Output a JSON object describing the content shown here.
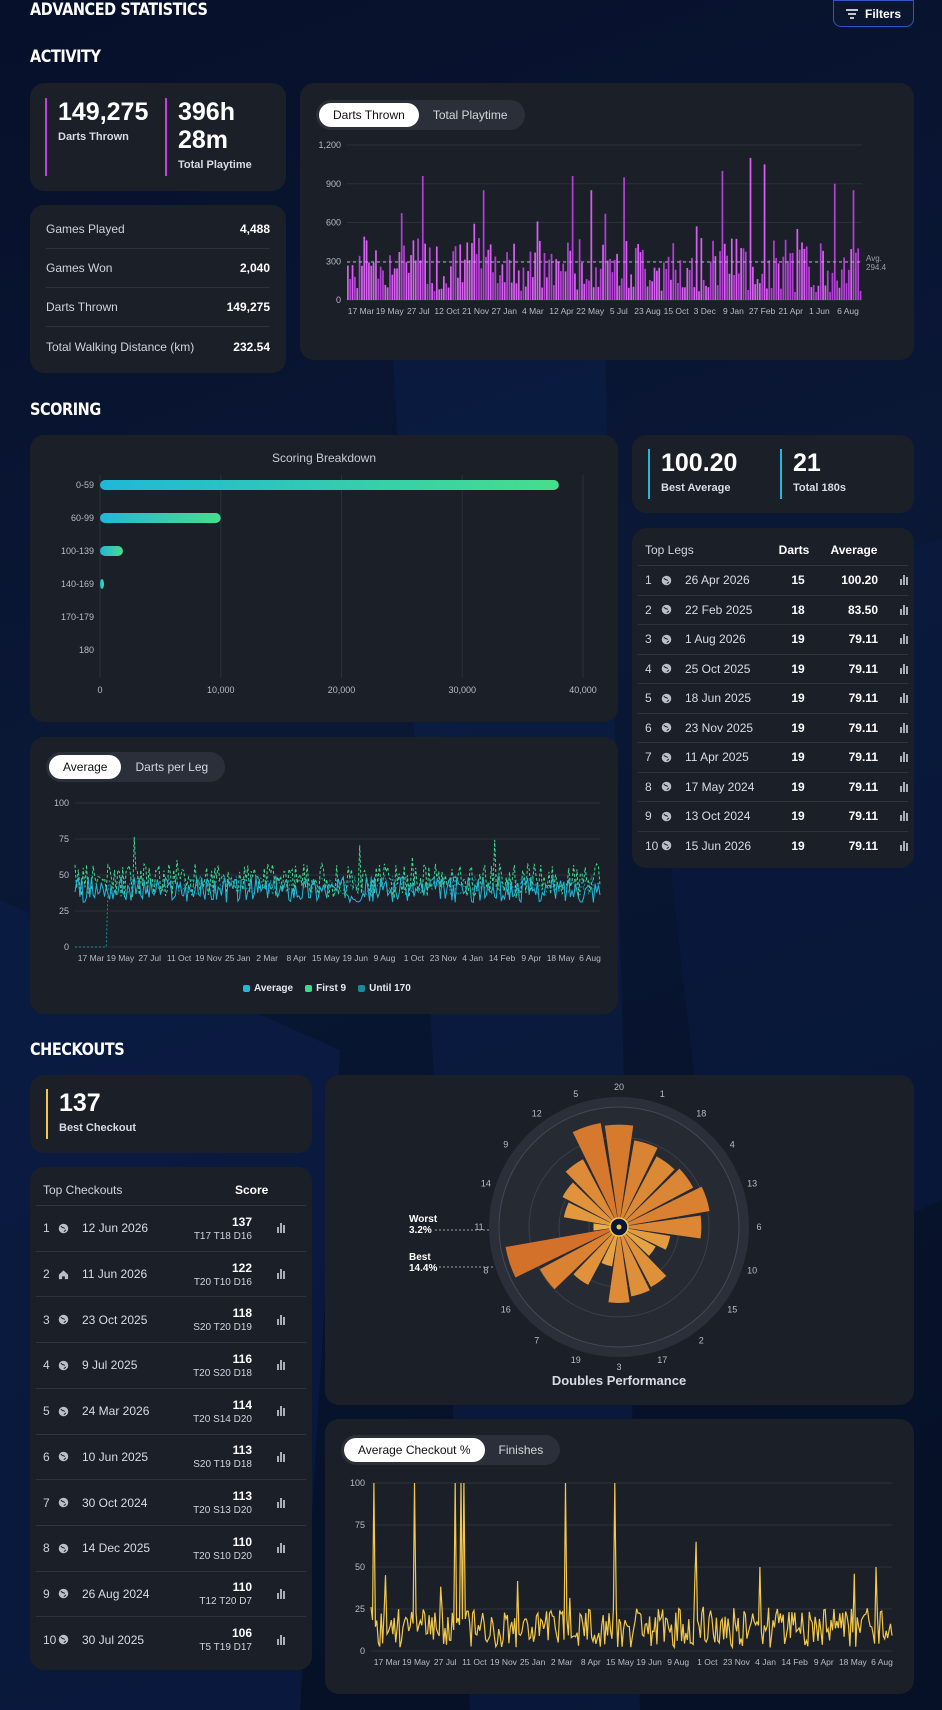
{
  "page": {
    "title": "ADVANCED STATISTICS",
    "filters_label": "Filters"
  },
  "activity": {
    "heading": "ACTIVITY",
    "darts_thrown_value": "149,275",
    "darts_thrown_label": "Darts Thrown",
    "playtime_hours": "396h",
    "playtime_minutes": "28m",
    "playtime_label": "Total Playtime",
    "stats": [
      {
        "label": "Games Played",
        "value": "4,488"
      },
      {
        "label": "Games Won",
        "value": "2,040"
      },
      {
        "label": "Darts Thrown",
        "value": "149,275"
      },
      {
        "label": "Total Walking Distance (km)",
        "value": "232.54"
      }
    ],
    "tabs": [
      "Darts Thrown",
      "Total Playtime"
    ],
    "avg_label": "Avg.",
    "avg_value": "294.4"
  },
  "scoring": {
    "heading": "SCORING",
    "best_average_value": "100.20",
    "best_average_label": "Best Average",
    "total_180s_value": "21",
    "total_180s_label": "Total 180s",
    "top_legs_header": {
      "title": "Top Legs",
      "darts": "Darts",
      "average": "Average"
    },
    "top_legs": [
      {
        "n": "1",
        "date": "26 Apr 2026",
        "darts": "15",
        "avg": "100.20"
      },
      {
        "n": "2",
        "date": "22 Feb 2025",
        "darts": "18",
        "avg": "83.50"
      },
      {
        "n": "3",
        "date": "1 Aug 2026",
        "darts": "19",
        "avg": "79.11"
      },
      {
        "n": "4",
        "date": "25 Oct 2025",
        "darts": "19",
        "avg": "79.11"
      },
      {
        "n": "5",
        "date": "18 Jun 2025",
        "darts": "19",
        "avg": "79.11"
      },
      {
        "n": "6",
        "date": "23 Nov 2025",
        "darts": "19",
        "avg": "79.11"
      },
      {
        "n": "7",
        "date": "11 Apr 2025",
        "darts": "19",
        "avg": "79.11"
      },
      {
        "n": "8",
        "date": "17 May 2024",
        "darts": "19",
        "avg": "79.11"
      },
      {
        "n": "9",
        "date": "13 Oct 2024",
        "darts": "19",
        "avg": "79.11"
      },
      {
        "n": "10",
        "date": "15 Jun 2026",
        "darts": "19",
        "avg": "79.11"
      }
    ],
    "avg_tabs": [
      "Average",
      "Darts per Leg"
    ],
    "legend": [
      "Average",
      "First 9",
      "Until 170"
    ]
  },
  "checkouts": {
    "heading": "CHECKOUTS",
    "best_checkout_value": "137",
    "best_checkout_label": "Best Checkout",
    "table_header": {
      "title": "Top Checkouts",
      "score": "Score"
    },
    "rows": [
      {
        "n": "1",
        "icon": "globe-icon",
        "date": "12 Jun 2026",
        "score": "137",
        "route": "T17 T18 D16"
      },
      {
        "n": "2",
        "icon": "home-icon",
        "date": "11 Jun 2026",
        "score": "122",
        "route": "T20 T10 D16"
      },
      {
        "n": "3",
        "icon": "globe-icon",
        "date": "23 Oct 2025",
        "score": "118",
        "route": "S20 T20 D19"
      },
      {
        "n": "4",
        "icon": "globe-icon",
        "date": "9 Jul 2025",
        "score": "116",
        "route": "T20 S20 D18"
      },
      {
        "n": "5",
        "icon": "globe-icon",
        "date": "24 Mar 2026",
        "score": "114",
        "route": "T20 S14 D20"
      },
      {
        "n": "6",
        "icon": "globe-icon",
        "date": "10 Jun 2025",
        "score": "113",
        "route": "S20 T19 D18"
      },
      {
        "n": "7",
        "icon": "globe-icon",
        "date": "30 Oct 2024",
        "score": "113",
        "route": "T20 S13 D20"
      },
      {
        "n": "8",
        "icon": "globe-icon",
        "date": "14 Dec 2025",
        "score": "110",
        "route": "T20 S10 D20"
      },
      {
        "n": "9",
        "icon": "globe-icon",
        "date": "26 Aug 2024",
        "score": "110",
        "route": "T12 T20 D7"
      },
      {
        "n": "10",
        "icon": "globe-icon",
        "date": "30 Jul 2025",
        "score": "106",
        "route": "T5 T19 D17"
      }
    ],
    "doubles_title": "Doubles Performance",
    "worst_label": "Worst",
    "worst_value": "3.2%",
    "best_label": "Best",
    "best_value": "14.4%",
    "checkout_tabs": [
      "Average Checkout %",
      "Finishes"
    ]
  },
  "colors": {
    "activity_accent": "#c640e0",
    "scoring_accent": "#22b8d8",
    "scoring_green": "#3fd98c",
    "checkout_accent": "#f3c84a",
    "card_bg": "#1b1f28"
  },
  "chart_data": [
    {
      "type": "bar",
      "id": "darts-thrown-chart",
      "x_tick_labels": [
        "17 Mar",
        "19 May",
        "27 Jul",
        "12 Oct",
        "21 Nov",
        "27 Jan",
        "4 Mar",
        "12 Apr",
        "22 May",
        "5 Jul",
        "23 Aug",
        "15 Oct",
        "3 Dec",
        "9 Jan",
        "27 Feb",
        "21 Apr",
        "1 Jun",
        "6 Aug"
      ],
      "y_ticks": [
        "0",
        "300",
        "600",
        "900",
        "1,200"
      ],
      "ylim": [
        0,
        1200
      ],
      "average_line": 294.4,
      "bar_count": 220,
      "seed": 7,
      "peaks": [
        [
          32,
          960
        ],
        [
          58,
          850
        ],
        [
          96,
          960
        ],
        [
          104,
          850
        ],
        [
          118,
          950
        ],
        [
          160,
          1000
        ],
        [
          172,
          1100
        ],
        [
          178,
          1050
        ],
        [
          208,
          900
        ],
        [
          216,
          850
        ]
      ]
    },
    {
      "type": "bar",
      "id": "scoring-breakdown-chart",
      "orientation": "horizontal",
      "title": "Scoring Breakdown",
      "categories": [
        "0-59",
        "60-99",
        "100-139",
        "140-169",
        "170-179",
        "180"
      ],
      "values": [
        38000,
        10000,
        1900,
        300,
        0,
        0
      ],
      "x_tick_labels": [
        "0",
        "10,000",
        "20,000",
        "30,000",
        "40,000"
      ],
      "xlim": [
        0,
        40000
      ]
    },
    {
      "type": "line",
      "id": "average-chart",
      "x_tick_labels": [
        "17 Mar",
        "19 May",
        "27 Jul",
        "11 Oct",
        "19 Nov",
        "25 Jan",
        "2 Mar",
        "8 Apr",
        "15 May",
        "19 Jun",
        "9 Aug",
        "1 Oct",
        "23 Nov",
        "4 Jan",
        "14 Feb",
        "9 Apr",
        "18 May",
        "6 Aug"
      ],
      "y_ticks": [
        "0",
        "25",
        "50",
        "75",
        "100"
      ],
      "ylim": [
        0,
        100
      ],
      "series": [
        {
          "name": "Average",
          "base": 40,
          "spread": 9
        },
        {
          "name": "First 9",
          "base": 46,
          "spread": 12
        },
        {
          "name": "Until 170",
          "base": 43,
          "spread": 7
        }
      ],
      "point_count": 320,
      "seed": 11
    },
    {
      "type": "pie",
      "id": "doubles-performance-chart",
      "title": "Doubles Performance",
      "categories": [
        "20",
        "1",
        "18",
        "4",
        "13",
        "6",
        "10",
        "15",
        "2",
        "17",
        "3",
        "19",
        "7",
        "16",
        "8",
        "11",
        "14",
        "9",
        "12",
        "5"
      ],
      "values": [
        12.8,
        11.0,
        10.0,
        10.5,
        11.5,
        10.3,
        6.5,
        5.2,
        8.5,
        8.8,
        9.5,
        5.0,
        8.2,
        11.2,
        14.4,
        3.2,
        7.0,
        8.0,
        9.6,
        13.2
      ],
      "max": 15
    },
    {
      "type": "line",
      "id": "checkout-percentage-chart",
      "x_tick_labels": [
        "17 Mar",
        "19 May",
        "27 Jul",
        "11 Oct",
        "19 Nov",
        "25 Jan",
        "2 Mar",
        "8 Apr",
        "15 May",
        "19 Jun",
        "9 Aug",
        "1 Oct",
        "23 Nov",
        "4 Jan",
        "14 Feb",
        "9 Apr",
        "18 May",
        "6 Aug"
      ],
      "y_ticks": [
        "0",
        "25",
        "50",
        "75",
        "100"
      ],
      "ylim": [
        0,
        100
      ],
      "series": [
        {
          "name": "Average Checkout %",
          "base": 14,
          "spread": 12
        }
      ],
      "point_count": 360,
      "seed": 23,
      "peaks": [
        [
          2,
          100
        ],
        [
          30,
          100
        ],
        [
          58,
          100
        ],
        [
          62,
          100
        ],
        [
          64,
          100
        ],
        [
          134,
          100
        ],
        [
          168,
          100
        ],
        [
          224,
          65
        ],
        [
          268,
          50
        ],
        [
          348,
          50
        ]
      ]
    }
  ]
}
